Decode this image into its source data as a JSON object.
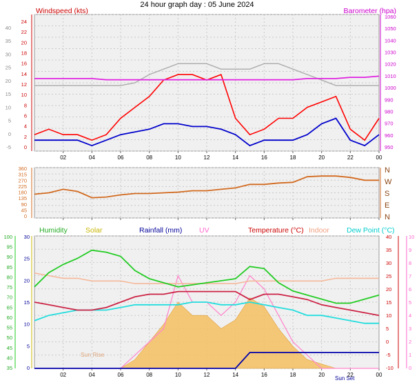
{
  "title": "24 hour graph day : 05 June 2024",
  "x_ticks": [
    "02",
    "04",
    "06",
    "08",
    "10",
    "12",
    "14",
    "16",
    "18",
    "20",
    "22",
    "00"
  ],
  "colors": {
    "wind": "#ff0000",
    "wind_avg": "#0000cc",
    "gust_bg": "#b0b0b0",
    "barometer": "#e020e0",
    "direction": "#d2691e",
    "humidity": "#22cc22",
    "solar": "#f5c060",
    "rainfall": "#0000aa",
    "uv": "#ff88cc",
    "temperature": "#cc2244",
    "indoor": "#f5b89a",
    "dewpoint": "#22dddd"
  },
  "chart_data": [
    {
      "type": "line",
      "title": "",
      "left_axis_label": "Windspeed (kts)",
      "right_axis_label": "Barometer (hpa)",
      "outer_left_ticks": [
        "40",
        "35",
        "30",
        "25",
        "20",
        "15",
        "10",
        "5",
        "0",
        "-5"
      ],
      "left_ticks": [
        "24",
        "22",
        "20",
        "18",
        "16",
        "14",
        "12",
        "10",
        "8",
        "6",
        "4",
        "2",
        "0"
      ],
      "right_ticks": [
        "1060",
        "1050",
        "1040",
        "1030",
        "1020",
        "1010",
        "1000",
        "990",
        "980",
        "970",
        "960",
        "950"
      ],
      "left_ylim": [
        0,
        25
      ],
      "right_ylim": [
        947,
        1060
      ],
      "x": [
        0,
        1,
        2,
        3,
        4,
        5,
        6,
        7,
        8,
        9,
        10,
        11,
        12,
        13,
        14,
        15,
        16,
        17,
        18,
        19,
        20,
        21,
        22,
        23,
        24
      ],
      "series": [
        {
          "key": "gust_max",
          "values": [
            12,
            12,
            12,
            12,
            12,
            12,
            12,
            12.5,
            14,
            15,
            16,
            16,
            16,
            15,
            15,
            15,
            16,
            16,
            15,
            14,
            13,
            12,
            12,
            12,
            12
          ]
        },
        {
          "key": "wind_speed",
          "values": [
            3,
            4,
            3,
            3,
            2,
            3,
            6,
            8,
            10,
            13,
            14,
            14,
            13,
            14,
            6,
            3,
            4,
            6,
            6,
            8,
            9,
            10,
            4,
            2,
            6
          ]
        },
        {
          "key": "wind_avg",
          "values": [
            2,
            2,
            2,
            2,
            1,
            2,
            3,
            3.5,
            4,
            5,
            5,
            4.5,
            4.5,
            4,
            3,
            1,
            2,
            2,
            2,
            3,
            5,
            6,
            2,
            1,
            3
          ]
        },
        {
          "key": "barometer",
          "values": [
            1007,
            1007,
            1007,
            1007,
            1007,
            1006,
            1006,
            1006,
            1006,
            1006,
            1006,
            1006,
            1006,
            1006,
            1006,
            1006,
            1006,
            1006,
            1006,
            1007,
            1007,
            1007,
            1008,
            1008,
            1009
          ]
        }
      ]
    },
    {
      "type": "line",
      "title": "",
      "ylabel": "",
      "left_ticks": [
        "360",
        "315",
        "270",
        "225",
        "180",
        "135",
        "90",
        "45",
        "0"
      ],
      "right_labels": [
        "N",
        "W",
        "S",
        "E",
        "N"
      ],
      "ylim": [
        0,
        360
      ],
      "x": [
        0,
        1,
        2,
        3,
        4,
        5,
        6,
        7,
        8,
        9,
        10,
        11,
        12,
        13,
        14,
        15,
        16,
        17,
        18,
        19,
        20,
        21,
        22,
        23,
        24
      ],
      "series": [
        {
          "key": "wind_direction",
          "values": [
            170,
            180,
            205,
            190,
            145,
            150,
            165,
            175,
            175,
            180,
            185,
            195,
            195,
            205,
            215,
            240,
            240,
            250,
            255,
            295,
            300,
            300,
            290,
            270,
            270
          ]
        }
      ]
    },
    {
      "type": "line",
      "title": "",
      "legend": [
        "Humidity",
        "Solar",
        "Rainfall (mm)",
        "UV",
        "Temperature (°C)",
        "Indoor",
        "Dew Point (°C)"
      ],
      "humidity_ticks": [
        "100",
        "95",
        "90",
        "85",
        "80",
        "75",
        "70",
        "65",
        "60",
        "55",
        "50",
        "45",
        "40",
        "35"
      ],
      "solar_ticks": [
        "30",
        "25",
        "20",
        "15",
        "10",
        "5",
        "0"
      ],
      "temp_ticks": [
        "40",
        "35",
        "30",
        "25",
        "20",
        "15",
        "10",
        "5",
        "0",
        "-5",
        "-10"
      ],
      "uv_ticks": [
        "10",
        "9",
        "8",
        "7",
        "6",
        "5",
        "4",
        "3",
        "2",
        "1",
        "0"
      ],
      "temp_ylim": [
        -10,
        40
      ],
      "annotations": [
        "Sun Rise",
        "Sun Set"
      ],
      "x": [
        0,
        1,
        2,
        3,
        4,
        5,
        6,
        7,
        8,
        9,
        10,
        11,
        12,
        13,
        14,
        15,
        16,
        17,
        18,
        19,
        20,
        21,
        22,
        23,
        24
      ],
      "series": [
        {
          "key": "humidity",
          "values": [
            75,
            82,
            86,
            89,
            93,
            92,
            90,
            83,
            79,
            77,
            75,
            76,
            77,
            78,
            79,
            85,
            84,
            77,
            73,
            71,
            69,
            67,
            67,
            69,
            71
          ]
        },
        {
          "key": "temperature",
          "values": [
            15,
            14,
            13,
            12,
            12,
            13,
            15,
            17,
            18,
            18,
            19,
            19,
            19,
            19,
            19,
            16,
            18,
            18,
            17,
            16,
            14,
            13,
            12,
            11,
            10
          ]
        },
        {
          "key": "dewpoint",
          "values": [
            8,
            10,
            11,
            12,
            12,
            12,
            13,
            14,
            14,
            14,
            14,
            15,
            15,
            14,
            14,
            15,
            14,
            13,
            12,
            10,
            10,
            9,
            8,
            7,
            7
          ]
        },
        {
          "key": "indoor",
          "values": [
            26,
            25,
            24,
            24,
            23,
            23,
            23,
            22,
            22,
            22,
            22,
            22,
            22,
            22,
            22,
            23,
            23,
            23,
            23,
            23,
            23,
            24,
            24,
            24,
            24
          ]
        },
        {
          "key": "solar",
          "values": [
            0,
            0,
            0,
            0,
            0,
            0,
            0,
            2,
            6,
            10,
            15,
            12,
            12,
            9,
            11,
            16,
            14,
            9,
            5,
            2,
            1,
            0,
            0,
            0,
            0
          ]
        },
        {
          "key": "uv",
          "values": [
            0,
            0,
            0,
            0,
            0,
            0,
            0,
            1,
            2,
            3,
            7,
            5,
            5,
            4,
            5,
            7,
            6,
            4,
            2,
            1,
            0,
            0,
            0,
            0,
            0
          ]
        },
        {
          "key": "rainfall",
          "values": [
            0,
            0,
            0,
            0,
            0,
            0,
            0,
            0,
            0,
            0,
            0,
            0,
            0,
            0,
            0,
            1.2,
            1.2,
            1.2,
            1.2,
            1.2,
            1.2,
            1.2,
            1.2,
            1.2,
            1.2
          ]
        }
      ]
    }
  ]
}
